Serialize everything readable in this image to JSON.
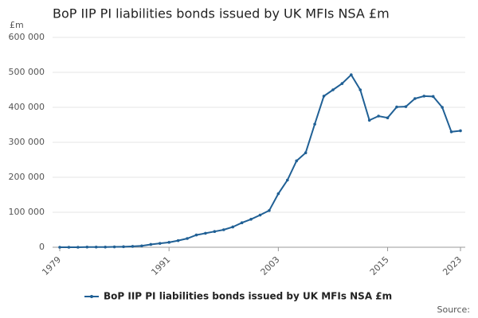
{
  "chart_data": {
    "type": "line",
    "title": "BoP IIP PI liabilities bonds issued by UK MFIs NSA £m",
    "y_unit": "£m",
    "source": "Source:",
    "x": [
      1979,
      1980,
      1981,
      1982,
      1983,
      1984,
      1985,
      1986,
      1987,
      1988,
      1989,
      1990,
      1991,
      1992,
      1993,
      1994,
      1995,
      1996,
      1997,
      1998,
      1999,
      2000,
      2001,
      2002,
      2003,
      2004,
      2005,
      2006,
      2007,
      2008,
      2009,
      2010,
      2011,
      2012,
      2013,
      2014,
      2015,
      2016,
      2017,
      2018,
      2019,
      2020,
      2021,
      2022,
      2023
    ],
    "series": [
      {
        "name": "BoP IIP PI liabilities bonds issued by UK MFIs NSA £m",
        "color": "#206095",
        "values": [
          0,
          0,
          0,
          500,
          500,
          500,
          1000,
          1500,
          2500,
          4000,
          8000,
          11000,
          14000,
          19000,
          25000,
          35000,
          40000,
          45000,
          50000,
          58000,
          70000,
          80000,
          92000,
          105000,
          153000,
          192000,
          247000,
          270000,
          352000,
          432000,
          450000,
          468000,
          493000,
          450000,
          363000,
          375000,
          370000,
          401000,
          402000,
          425000,
          432000,
          431000,
          400000,
          330000,
          333000
        ]
      }
    ],
    "xlim": [
      1979,
      2023
    ],
    "xticks": [
      1979,
      1991,
      2003,
      2015,
      2023
    ],
    "ylim": [
      0,
      600000
    ],
    "yticks": [
      0,
      {
        "value": 100000,
        "label": "100 000"
      },
      {
        "value": 200000,
        "label": "200 000"
      },
      {
        "value": 300000,
        "label": "300 000"
      },
      {
        "value": 400000,
        "label": "400 000"
      },
      {
        "value": 500000,
        "label": "500 000"
      },
      {
        "value": 600000,
        "label": "600 000"
      }
    ],
    "grid": true
  }
}
